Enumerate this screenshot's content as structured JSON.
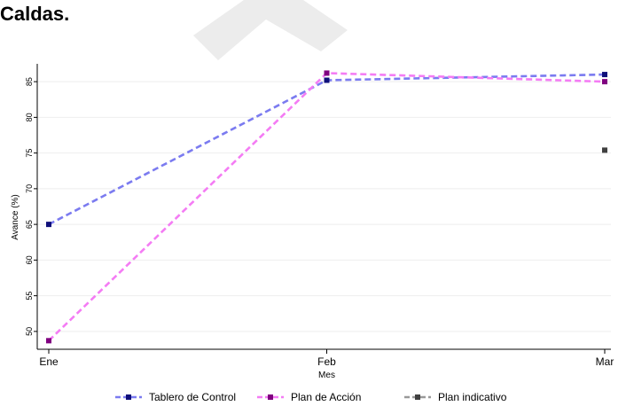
{
  "page": {
    "heading": "Caldas."
  },
  "chart_data": {
    "type": "line",
    "categories": [
      "Ene",
      "Feb",
      "Mar"
    ],
    "xlabel": "Mes",
    "ylabel": "Avance (%)",
    "ylim": [
      47.5,
      87.5
    ],
    "yticks": [
      50,
      55,
      60,
      65,
      70,
      75,
      80,
      85
    ],
    "grid": true,
    "legend_position": "bottom",
    "series": [
      {
        "name": "Tablero de Control",
        "values": [
          65.0,
          85.2,
          86.0
        ],
        "color": "#7b7bf0",
        "marker_color": "#0f0f7a"
      },
      {
        "name": "Plan de Acción",
        "values": [
          48.7,
          86.2,
          85.0
        ],
        "color": "#f47cf4",
        "marker_color": "#800080"
      },
      {
        "name": "Plan indicativo",
        "values": [
          null,
          null,
          75.4
        ],
        "color": "#999999",
        "marker_color": "#404040"
      }
    ]
  }
}
